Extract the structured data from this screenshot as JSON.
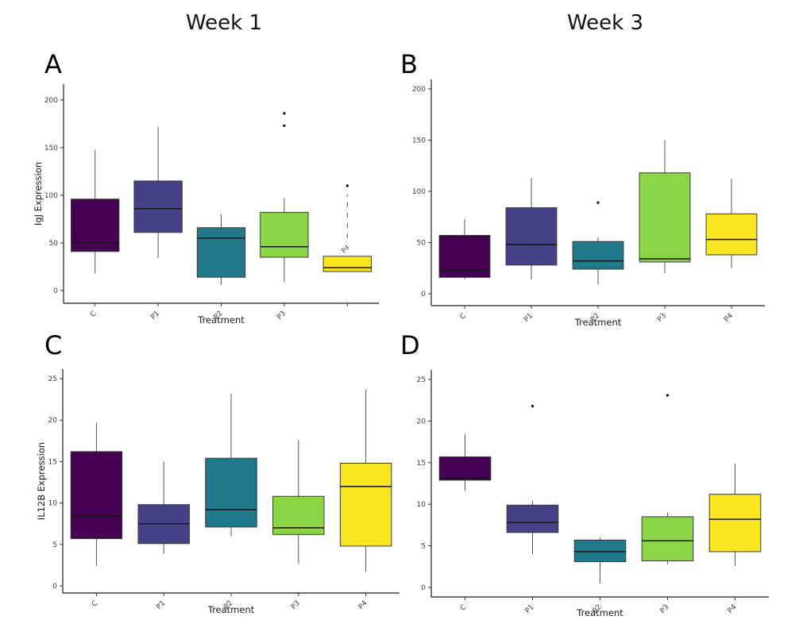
{
  "figure": {
    "background": "#ffffff",
    "axis_color": "#1a1a1a",
    "tick_text_color": "#3d3d3d",
    "box_border_color": "#3a3a3a",
    "whisker_color": "#555555",
    "median_color": "#151515"
  },
  "chart_data": [
    {
      "type": "boxplot",
      "panel": "A",
      "title": "Week 1",
      "ylabel": "IgJ Expression",
      "xlabel": "Treatment",
      "ylim": [
        0,
        210
      ],
      "yticks": [
        0,
        50,
        100,
        150,
        200
      ],
      "grid": false,
      "legend": "none",
      "categories": [
        "C",
        "P1",
        "P2",
        "P3",
        "P4"
      ],
      "x_tick_labels": [
        "C",
        "P1",
        "P2",
        "P3",
        ""
      ],
      "boxes": [
        {
          "category": "C",
          "color": "#440154",
          "whislo": 18,
          "q1": 41,
          "med": 50,
          "q3": 96,
          "whishi": 148,
          "outliers": []
        },
        {
          "category": "P1",
          "color": "#454189",
          "whislo": 34,
          "q1": 61,
          "med": 86,
          "q3": 115,
          "whishi": 172,
          "outliers": []
        },
        {
          "category": "P2",
          "color": "#21798C",
          "whislo": 6,
          "q1": 14,
          "med": 55,
          "q3": 66,
          "whishi": 80,
          "outliers": []
        },
        {
          "category": "P3",
          "color": "#8BD546",
          "whislo": 9,
          "q1": 35,
          "med": 46,
          "q3": 82,
          "whishi": 97,
          "outliers": [
            173,
            186
          ]
        },
        {
          "category": "P4",
          "color": "#FAE521",
          "whislo": 20,
          "q1": 20,
          "med": 24,
          "q3": 36,
          "whishi": 36,
          "outliers": [
            110
          ]
        }
      ],
      "annotations": [
        {
          "type": "dashed-whisker",
          "category": "P4",
          "from": 55,
          "to": 101
        },
        {
          "type": "displaced-tick-label",
          "text": "P4",
          "category": "P4",
          "value": 45
        }
      ]
    },
    {
      "type": "boxplot",
      "panel": "B",
      "title": "Week 3",
      "ylabel": "",
      "xlabel": "Treatment",
      "ylim": [
        0,
        210
      ],
      "yticks": [
        0,
        50,
        100,
        150,
        200
      ],
      "grid": false,
      "legend": "none",
      "categories": [
        "C",
        "P1",
        "P2",
        "P3",
        "P4"
      ],
      "x_tick_labels": [
        "C",
        "P1",
        "P2",
        "P3",
        "P4"
      ],
      "boxes": [
        {
          "category": "C",
          "color": "#440154",
          "whislo": 14,
          "q1": 16,
          "med": 23,
          "q3": 57,
          "whishi": 73,
          "outliers": []
        },
        {
          "category": "P1",
          "color": "#454189",
          "whislo": 14,
          "q1": 28,
          "med": 48,
          "q3": 84,
          "whishi": 113,
          "outliers": []
        },
        {
          "category": "P2",
          "color": "#21798C",
          "whislo": 9,
          "q1": 24,
          "med": 32,
          "q3": 51,
          "whishi": 55,
          "outliers": [
            89
          ]
        },
        {
          "category": "P3",
          "color": "#8BD546",
          "whislo": 20,
          "q1": 31,
          "med": 34,
          "q3": 118,
          "whishi": 150,
          "outliers": []
        },
        {
          "category": "P4",
          "color": "#FAE521",
          "whislo": 25,
          "q1": 38,
          "med": 53,
          "q3": 78,
          "whishi": 112,
          "outliers": []
        }
      ],
      "annotations": []
    },
    {
      "type": "boxplot",
      "panel": "C",
      "title": "",
      "ylabel": "IL12B Expression",
      "xlabel": "Treatment",
      "ylim": [
        0,
        26
      ],
      "yticks": [
        0,
        5,
        10,
        15,
        20,
        25
      ],
      "grid": false,
      "legend": "none",
      "categories": [
        "C",
        "P1",
        "P2",
        "P3",
        "P4"
      ],
      "x_tick_labels": [
        "C",
        "P1",
        "P2",
        "P3",
        "P4"
      ],
      "boxes": [
        {
          "category": "C",
          "color": "#440154",
          "whislo": 2.4,
          "q1": 5.7,
          "med": 8.4,
          "q3": 16.2,
          "whishi": 19.7,
          "outliers": []
        },
        {
          "category": "P1",
          "color": "#454189",
          "whislo": 3.9,
          "q1": 5.1,
          "med": 7.5,
          "q3": 9.8,
          "whishi": 15.0,
          "outliers": []
        },
        {
          "category": "P2",
          "color": "#21798C",
          "whislo": 6.0,
          "q1": 7.1,
          "med": 9.2,
          "q3": 15.4,
          "whishi": 23.2,
          "outliers": []
        },
        {
          "category": "P3",
          "color": "#8BD546",
          "whislo": 2.7,
          "q1": 6.2,
          "med": 7.0,
          "q3": 10.8,
          "whishi": 17.6,
          "outliers": []
        },
        {
          "category": "P4",
          "color": "#FAE521",
          "whislo": 1.7,
          "q1": 4.8,
          "med": 12.0,
          "q3": 14.8,
          "whishi": 23.7,
          "outliers": []
        }
      ],
      "annotations": []
    },
    {
      "type": "boxplot",
      "panel": "D",
      "title": "",
      "ylabel": "",
      "xlabel": "Treatment",
      "ylim": [
        0,
        26
      ],
      "yticks": [
        0,
        5,
        10,
        15,
        20,
        25
      ],
      "grid": false,
      "legend": "none",
      "categories": [
        "C",
        "P1",
        "P2",
        "P3",
        "P4"
      ],
      "x_tick_labels": [
        "C",
        "P1",
        "P2",
        "P3",
        "P4"
      ],
      "boxes": [
        {
          "category": "C",
          "color": "#440154",
          "whislo": 11.6,
          "q1": 12.9,
          "med": 13.1,
          "q3": 15.7,
          "whishi": 18.4,
          "outliers": []
        },
        {
          "category": "P1",
          "color": "#454189",
          "whislo": 4.0,
          "q1": 6.6,
          "med": 7.8,
          "q3": 9.9,
          "whishi": 10.4,
          "outliers": [
            21.8
          ]
        },
        {
          "category": "P2",
          "color": "#21798C",
          "whislo": 0.5,
          "q1": 3.1,
          "med": 4.3,
          "q3": 5.7,
          "whishi": 6.0,
          "outliers": []
        },
        {
          "category": "P3",
          "color": "#8BD546",
          "whislo": 2.8,
          "q1": 3.2,
          "med": 5.6,
          "q3": 8.5,
          "whishi": 9.0,
          "outliers": [
            23.1
          ]
        },
        {
          "category": "P4",
          "color": "#FAE521",
          "whislo": 2.6,
          "q1": 4.3,
          "med": 8.2,
          "q3": 11.2,
          "whishi": 14.9,
          "outliers": []
        }
      ],
      "annotations": []
    }
  ]
}
